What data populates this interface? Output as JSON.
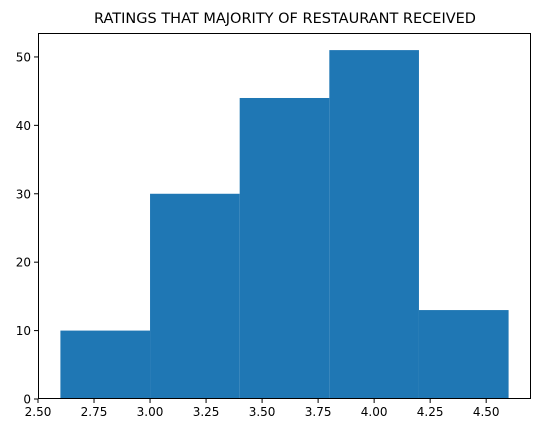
{
  "chart_data": {
    "type": "bar",
    "title": "RATINGS THAT MAJORITY OF RESTAURANT RECEIVED",
    "xlabel": "",
    "ylabel": "",
    "bins": [
      {
        "start": 2.6,
        "end": 3.0,
        "count": 10
      },
      {
        "start": 3.0,
        "end": 3.4,
        "count": 30
      },
      {
        "start": 3.4,
        "end": 3.8,
        "count": 44
      },
      {
        "start": 3.8,
        "end": 4.2,
        "count": 51
      },
      {
        "start": 4.2,
        "end": 4.6,
        "count": 13
      }
    ],
    "xlim": [
      2.5,
      4.7
    ],
    "ylim": [
      0,
      53.5
    ],
    "xticks": [
      "2.50",
      "2.75",
      "3.00",
      "3.25",
      "3.50",
      "3.75",
      "4.00",
      "4.25",
      "4.50"
    ],
    "xtick_values": [
      2.5,
      2.75,
      3.0,
      3.25,
      3.5,
      3.75,
      4.0,
      4.25,
      4.5
    ],
    "yticks": [
      "0",
      "10",
      "20",
      "30",
      "40",
      "50"
    ],
    "ytick_values": [
      0,
      10,
      20,
      30,
      40,
      50
    ],
    "bar_color": "#1f77b4",
    "grid": false
  }
}
